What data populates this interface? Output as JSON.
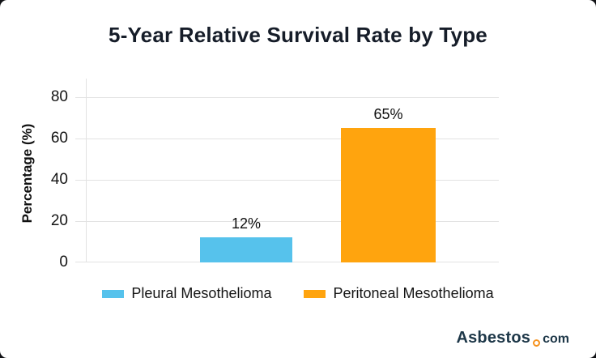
{
  "chart_data": {
    "type": "bar",
    "title": "5-Year Relative Survival Rate by Type",
    "categories": [
      "Pleural Mesothelioma",
      "Peritoneal Mesothelioma"
    ],
    "values": [
      12,
      65
    ],
    "value_labels": [
      "12%",
      "65%"
    ],
    "bar_colors": [
      "#56C2EC",
      "#FFA40E"
    ],
    "xlabel": "",
    "ylabel": "Percentage (%)",
    "yticks": [
      0,
      20,
      40,
      60,
      80
    ],
    "ylim": [
      0,
      89
    ],
    "grid": true,
    "legend_position": "bottom"
  },
  "y_axis": {
    "label": "Percentage (%)",
    "tick_labels_top_to_bottom": [
      "80",
      "60",
      "40",
      "20",
      "0"
    ]
  },
  "legend": {
    "items": [
      {
        "label": "Pleural Mesothelioma",
        "color": "#56C2EC"
      },
      {
        "label": "Peritoneal Mesothelioma",
        "color": "#FFA40E"
      }
    ]
  },
  "branding": {
    "logo_text": "Asbestos",
    "logo_suffix": "com",
    "logo_text_color": "#1D3748",
    "logo_dot_color": "#F6921E"
  }
}
